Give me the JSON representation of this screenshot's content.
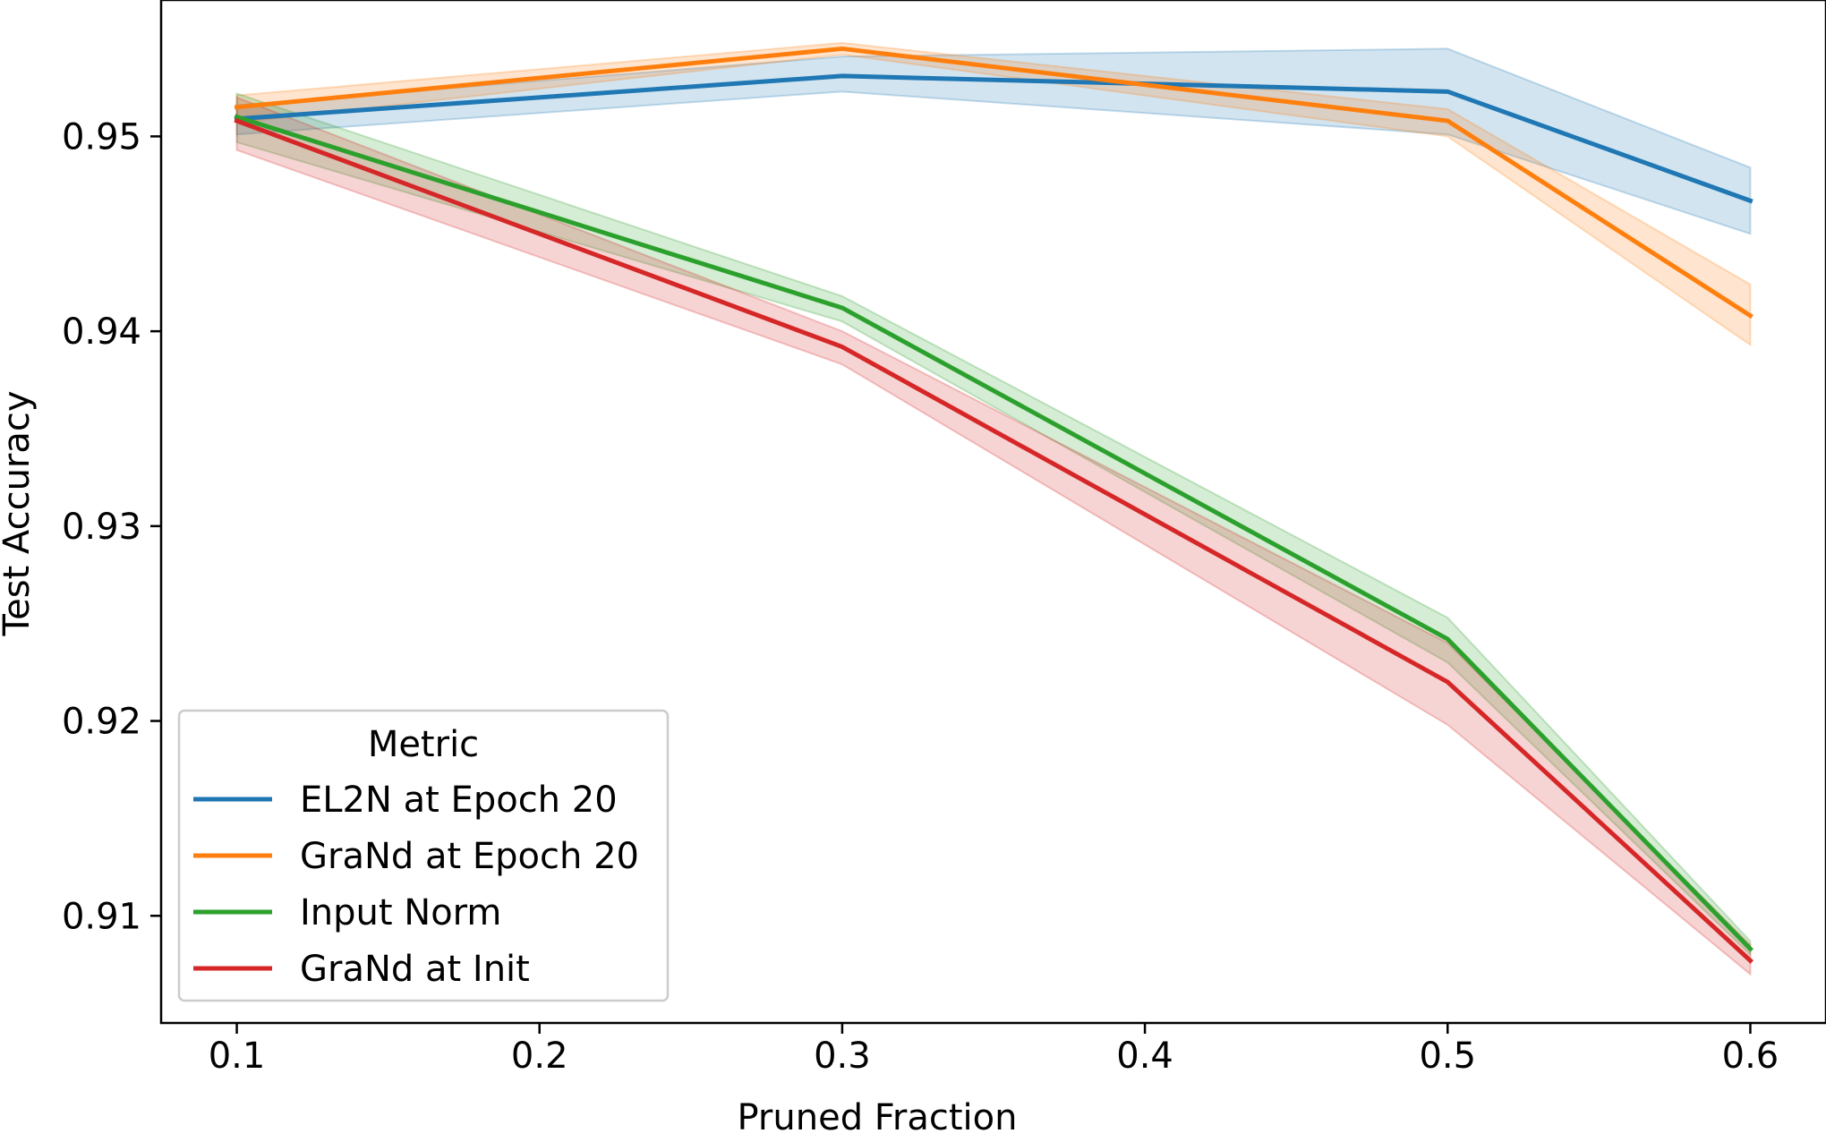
{
  "chart_data": {
    "type": "line",
    "title": "",
    "xlabel": "Pruned Fraction",
    "ylabel": "Test Accuracy",
    "x": [
      0.1,
      0.3,
      0.5,
      0.6
    ],
    "xlim": [
      0.075,
      0.625
    ],
    "ylim": [
      0.9045,
      0.957
    ],
    "xticks": [
      "0.1",
      "0.2",
      "0.3",
      "0.4",
      "0.5",
      "0.6"
    ],
    "yticks": [
      "0.91",
      "0.92",
      "0.93",
      "0.94",
      "0.95"
    ],
    "grid": false,
    "legend": {
      "title": "Metric",
      "placement": "lower-left"
    },
    "series": [
      {
        "name": "EL2N at Epoch 20",
        "color": "#1f77b4",
        "values": [
          0.9509,
          0.9531,
          0.9523,
          0.9467
        ],
        "lower": [
          0.9501,
          0.9523,
          0.9501,
          0.945
        ],
        "upper": [
          0.9516,
          0.9541,
          0.9545,
          0.9484
        ]
      },
      {
        "name": "GraNd at Epoch 20",
        "color": "#ff7f0e",
        "values": [
          0.9515,
          0.9545,
          0.9508,
          0.9408
        ],
        "lower": [
          0.9507,
          0.9542,
          0.95,
          0.9393
        ],
        "upper": [
          0.9521,
          0.9548,
          0.9514,
          0.9424
        ]
      },
      {
        "name": "Input Norm",
        "color": "#2ca02c",
        "values": [
          0.951,
          0.9412,
          0.9242,
          0.9083
        ],
        "lower": [
          0.9497,
          0.9405,
          0.923,
          0.908
        ],
        "upper": [
          0.9522,
          0.9418,
          0.9253,
          0.9087
        ]
      },
      {
        "name": "GraNd at Init",
        "color": "#d62728",
        "values": [
          0.9508,
          0.9392,
          0.922,
          0.9077
        ],
        "lower": [
          0.9493,
          0.9383,
          0.9198,
          0.907
        ],
        "upper": [
          0.952,
          0.94,
          0.924,
          0.9085
        ]
      }
    ]
  }
}
